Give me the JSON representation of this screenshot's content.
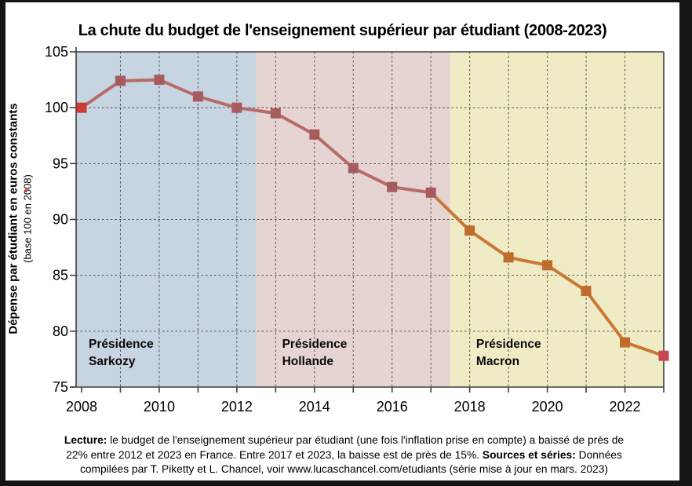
{
  "title": "La chute du budget de l'enseignement supérieur par étudiant (2008-2023)",
  "frame_color": "#141414",
  "chart_data": {
    "type": "line",
    "title": "La chute du budget de l'enseignement supérieur par étudiant (2008-2023)",
    "ylabel": "Dépense par étudiant en euros constants",
    "ylabel_sub": "(base 100 en 2008)",
    "x": [
      2008,
      2009,
      2010,
      2011,
      2012,
      2013,
      2014,
      2015,
      2016,
      2017,
      2018,
      2019,
      2020,
      2021,
      2022,
      2023
    ],
    "values": [
      100,
      102.4,
      102.5,
      101,
      100,
      99.5,
      97.6,
      94.6,
      92.9,
      92.4,
      89,
      86.6,
      85.9,
      83.6,
      79,
      77.8
    ],
    "ylim": [
      75,
      105
    ],
    "yticks": [
      105,
      100,
      95,
      90,
      85,
      80,
      75
    ],
    "xticks": [
      2008,
      2010,
      2012,
      2014,
      2016,
      2018,
      2020,
      2022
    ],
    "grid": "dashed",
    "legend": "none",
    "regions": [
      {
        "label_line1": "Présidence",
        "label_line2": "Sarkozy",
        "start": 2008,
        "end": 2012.5,
        "color": "#c7d4e1"
      },
      {
        "label_line1": "Présidence",
        "label_line2": "Hollande",
        "start": 2012.5,
        "end": 2017.5,
        "color": "#e6d4d2"
      },
      {
        "label_line1": "Présidence",
        "label_line2": "Macron",
        "start": 2017.5,
        "end": 2023,
        "color": "#efecc5"
      }
    ],
    "colors": {
      "line_2008_2017": "#b76b67",
      "line_2017_2023": "#ca7836",
      "marker_2009_2017": "#a65c5e",
      "marker_2018_2022": "#c06c2d",
      "marker_2008": "#cb3a33",
      "marker_2023": "#c9474e",
      "axis": "#3f3f3f",
      "grid": "#4f4f4f"
    }
  },
  "footer": {
    "lines": [
      [
        {
          "b": 1,
          "t": "Lecture:"
        },
        {
          "b": 0,
          "t": " le budget de l'enseignement supérieur par étudiant (une fois l'inflation prise en compte) a baissé de près de"
        }
      ],
      [
        {
          "b": 0,
          "t": "22% entre 2012 et 2023 en France. Entre 2017 et 2023, la baisse est de près de 15%. "
        },
        {
          "b": 1,
          "t": "Sources et séries:"
        },
        {
          "b": 0,
          "t": " Données"
        }
      ],
      [
        {
          "b": 0,
          "t": "compilées par T. Piketty et L. Chancel, voir www.lucaschancel.com/etudiants (série mise à jour en mars. 2023)"
        }
      ]
    ]
  }
}
